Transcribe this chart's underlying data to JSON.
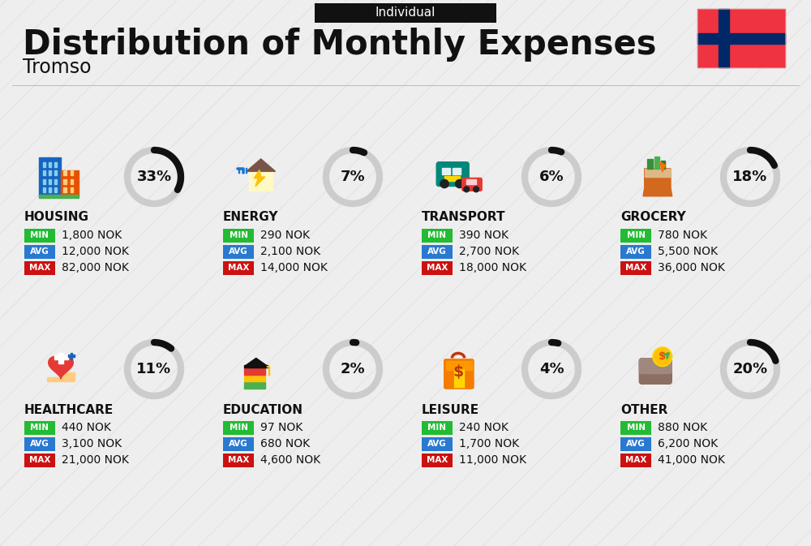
{
  "title": "Distribution of Monthly Expenses",
  "subtitle": "Individual",
  "city": "Tromso",
  "background_color": "#eeeeee",
  "categories": [
    {
      "name": "HOUSING",
      "percent": 33,
      "min": "1,800 NOK",
      "avg": "12,000 NOK",
      "max": "82,000 NOK",
      "row": 0,
      "col": 0
    },
    {
      "name": "ENERGY",
      "percent": 7,
      "min": "290 NOK",
      "avg": "2,100 NOK",
      "max": "14,000 NOK",
      "row": 0,
      "col": 1
    },
    {
      "name": "TRANSPORT",
      "percent": 6,
      "min": "390 NOK",
      "avg": "2,700 NOK",
      "max": "18,000 NOK",
      "row": 0,
      "col": 2
    },
    {
      "name": "GROCERY",
      "percent": 18,
      "min": "780 NOK",
      "avg": "5,500 NOK",
      "max": "36,000 NOK",
      "row": 0,
      "col": 3
    },
    {
      "name": "HEALTHCARE",
      "percent": 11,
      "min": "440 NOK",
      "avg": "3,100 NOK",
      "max": "21,000 NOK",
      "row": 1,
      "col": 0
    },
    {
      "name": "EDUCATION",
      "percent": 2,
      "min": "97 NOK",
      "avg": "680 NOK",
      "max": "4,600 NOK",
      "row": 1,
      "col": 1
    },
    {
      "name": "LEISURE",
      "percent": 4,
      "min": "240 NOK",
      "avg": "1,700 NOK",
      "max": "11,000 NOK",
      "row": 1,
      "col": 2
    },
    {
      "name": "OTHER",
      "percent": 20,
      "min": "880 NOK",
      "avg": "6,200 NOK",
      "max": "41,000 NOK",
      "row": 1,
      "col": 3
    }
  ],
  "color_min": "#22bb33",
  "color_avg": "#2979d0",
  "color_max": "#cc1111",
  "circle_bg_color": "#cccccc",
  "circle_fill_color": "#111111",
  "flag_red": "#EF3340",
  "flag_blue": "#002868",
  "stripe_color": "#d8d8d8",
  "divider_color": "#bbbbbb",
  "header_box_color": "#111111",
  "text_dark": "#111111",
  "text_white": "#ffffff"
}
